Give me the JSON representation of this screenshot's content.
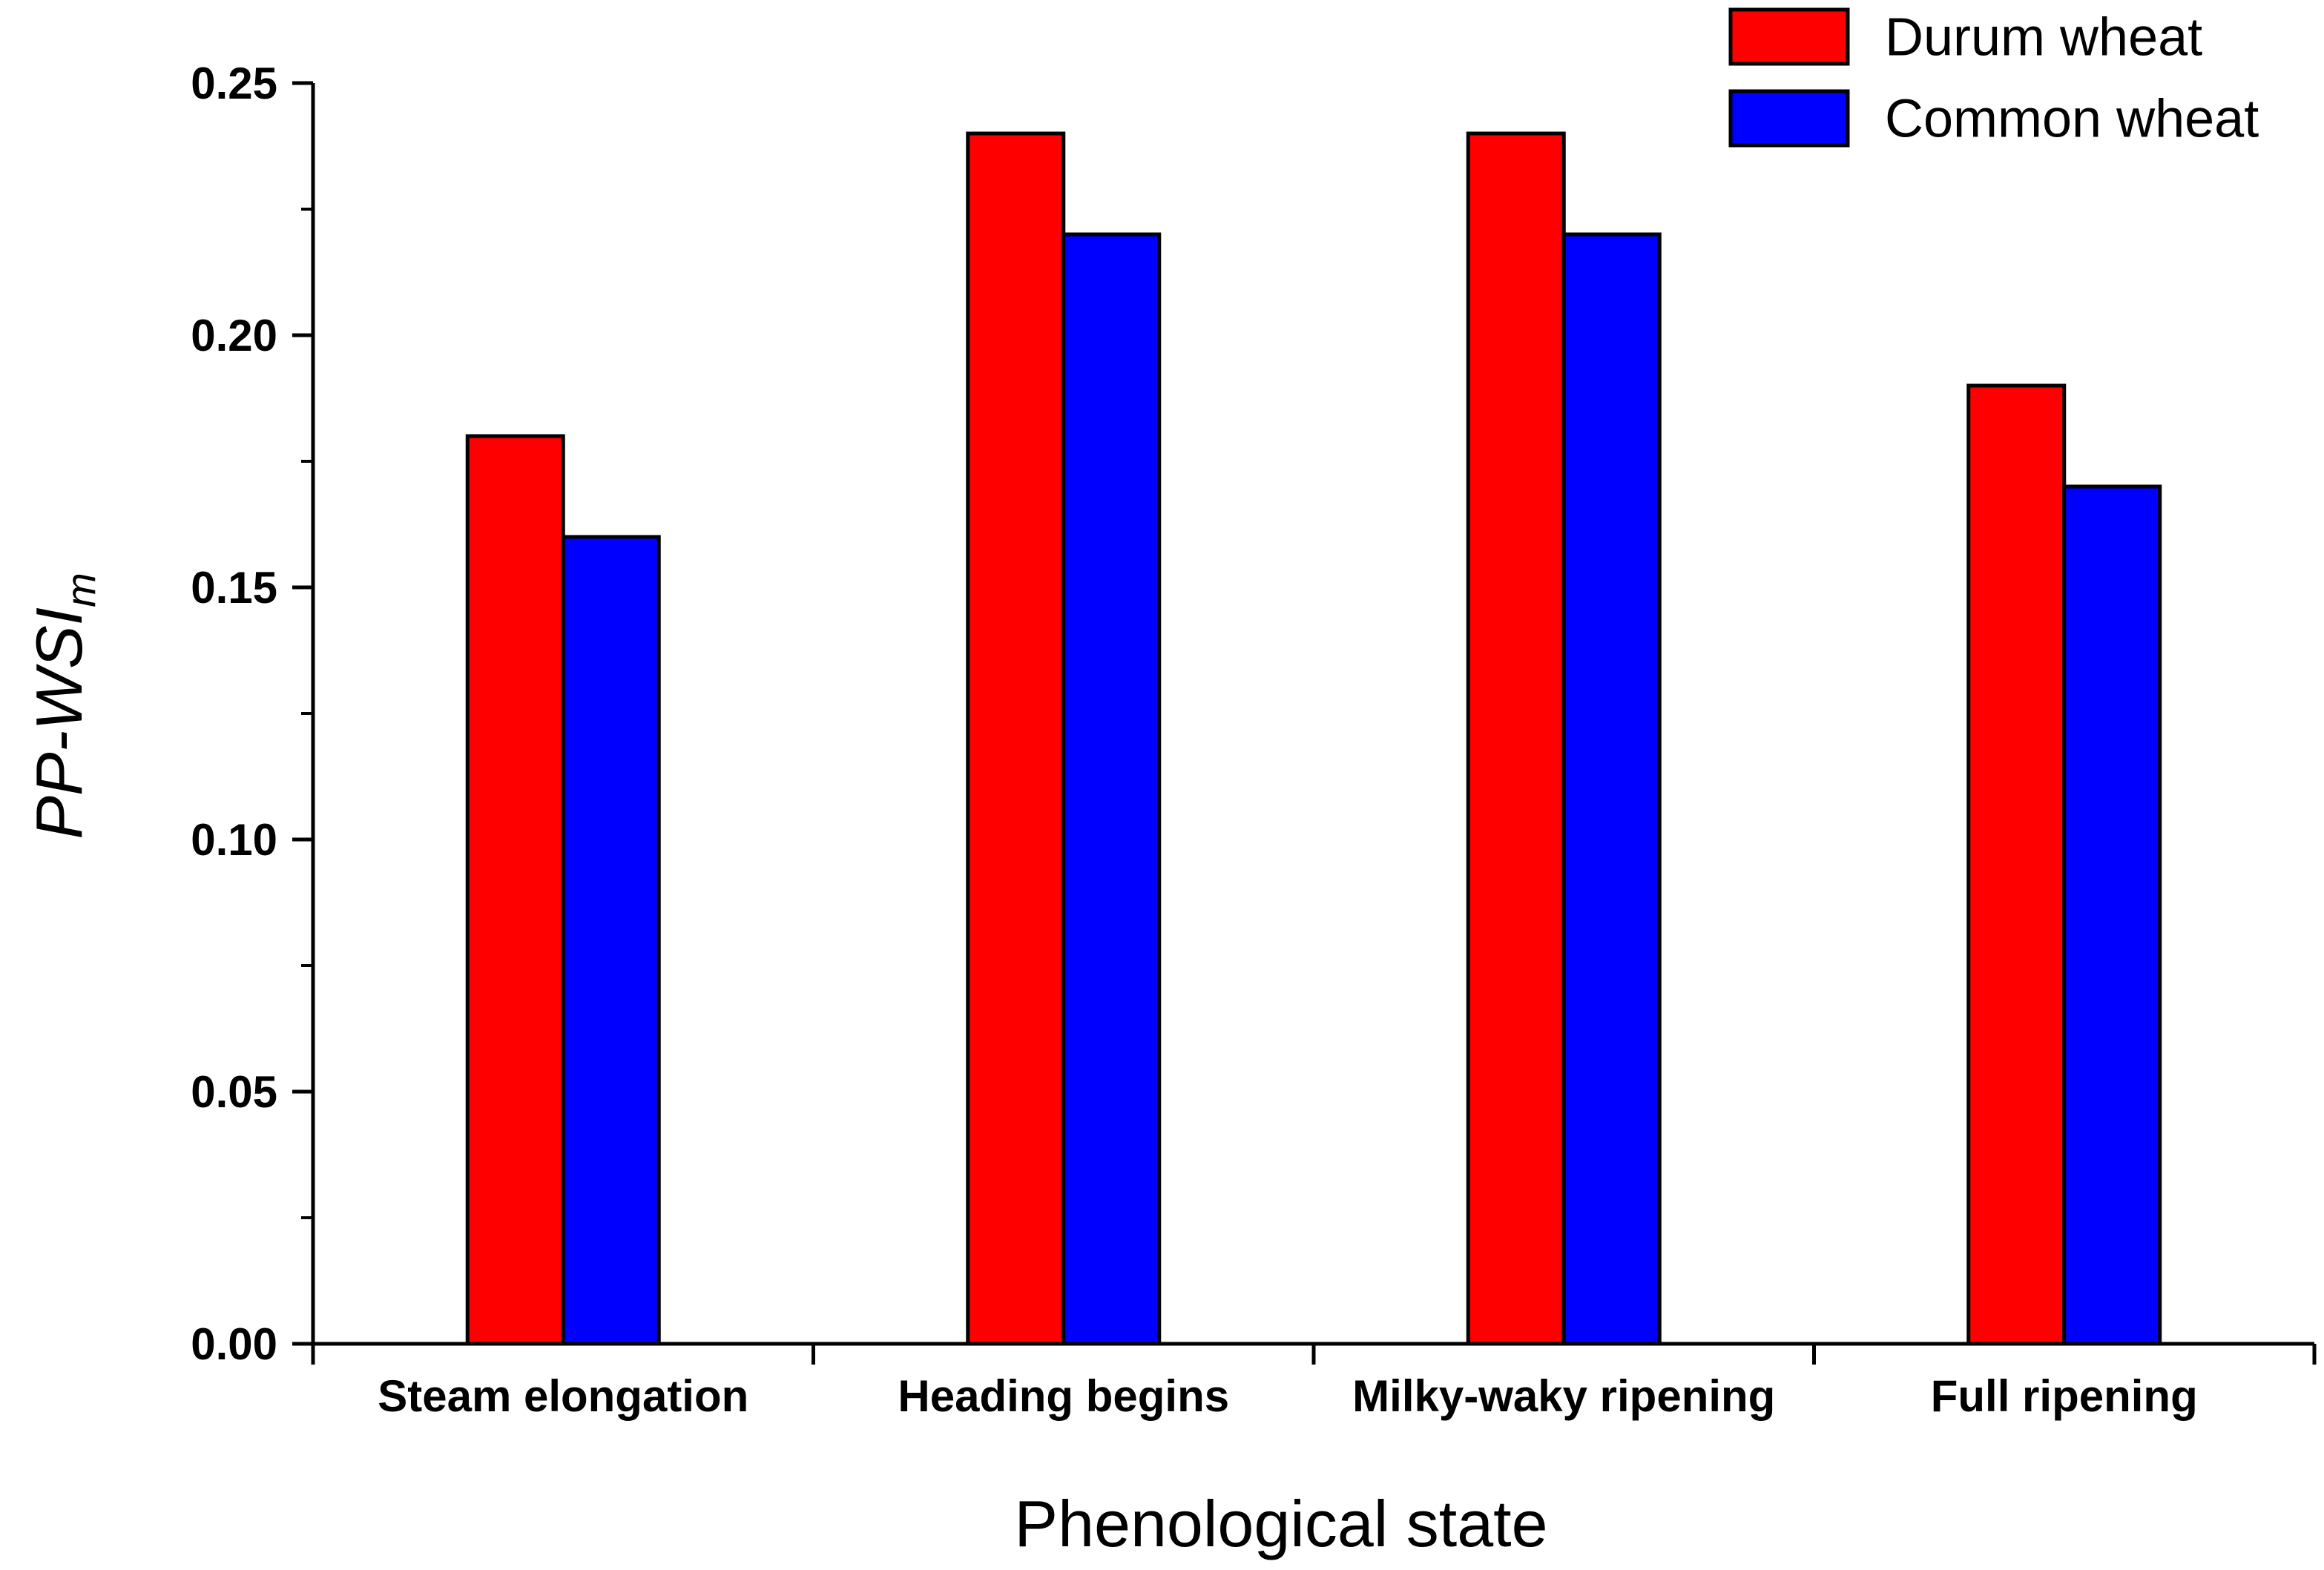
{
  "chart_data": {
    "type": "bar",
    "title": "",
    "xlabel": "Phenological state",
    "ylabel": "PP-WSI",
    "ylabel_subscript": "m",
    "ylim": [
      0,
      0.25
    ],
    "yticks": [
      "0.00",
      "0.05",
      "0.10",
      "0.15",
      "0.20",
      "0.25"
    ],
    "categories": [
      "Steam elongation",
      "Heading begins",
      "Milky-waky ripening",
      "Full ripening"
    ],
    "series": [
      {
        "name": "Durum wheat",
        "color": "#ff0000",
        "values": [
          0.18,
          0.24,
          0.24,
          0.19
        ]
      },
      {
        "name": "Common wheat",
        "color": "#0000ff",
        "values": [
          0.16,
          0.22,
          0.22,
          0.17
        ]
      }
    ],
    "legend_position": "top-right",
    "grid": false
  }
}
